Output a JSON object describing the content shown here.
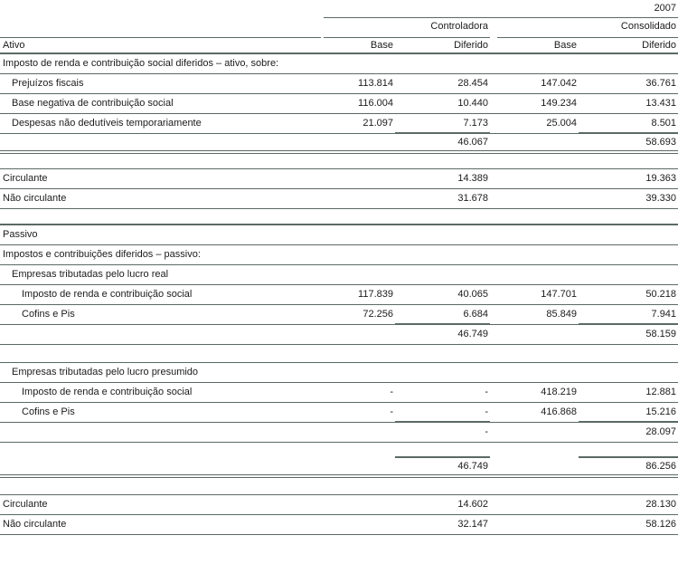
{
  "colors": {
    "rule": "#5b6a63",
    "text": "#1b1b1b",
    "background": "#ffffff"
  },
  "table": {
    "year": "2007",
    "groups": [
      {
        "label": "Controladora"
      },
      {
        "label": "Consolidado"
      }
    ],
    "col_headers": {
      "stub": "Ativo",
      "cols": [
        "Base",
        "Diferido",
        "Base",
        "Diferido"
      ]
    },
    "rows": [
      {
        "label": "Imposto de renda e contribuição social diferidos – ativo, sobre:",
        "indent": 0,
        "values": [
          "",
          "",
          "",
          ""
        ],
        "rule": "single"
      },
      {
        "label": "Prejuízos fiscais",
        "indent": 1,
        "values": [
          "113.814",
          "28.454",
          "147.042",
          "36.761"
        ],
        "rule": "single"
      },
      {
        "label": "Base negativa de contribuição social",
        "indent": 1,
        "values": [
          "116.004",
          "10.440",
          "149.234",
          "13.431"
        ],
        "rule": "single"
      },
      {
        "label": "Despesas não dedutíveis temporariamente",
        "indent": 1,
        "values": [
          "21.097",
          "7.173",
          "25.004",
          "8.501"
        ],
        "rule": "single",
        "pretotal": true
      },
      {
        "label": "",
        "indent": 0,
        "values": [
          "",
          "46.067",
          "",
          "58.693"
        ],
        "rule": "double"
      },
      {
        "spacer": true,
        "height": 17,
        "label": "",
        "values": [
          "",
          "",
          "",
          ""
        ],
        "rule": "single"
      },
      {
        "label": "Circulante",
        "indent": 0,
        "values": [
          "",
          "14.389",
          "",
          "19.363"
        ],
        "rule": "single"
      },
      {
        "label": "Não circulante",
        "indent": 0,
        "values": [
          "",
          "31.678",
          "",
          "39.330"
        ],
        "rule": "single"
      },
      {
        "spacer": true,
        "height": 18,
        "label": "",
        "values": [
          "",
          "",
          "",
          ""
        ],
        "rule": "thick"
      },
      {
        "label": "Passivo",
        "indent": 0,
        "values": [
          "",
          "",
          "",
          ""
        ],
        "rule": "single"
      },
      {
        "label": "Impostos e contribuições diferidos – passivo:",
        "indent": 0,
        "values": [
          "",
          "",
          "",
          ""
        ],
        "rule": "single"
      },
      {
        "label": "Empresas tributadas pelo lucro real",
        "indent": 1,
        "values": [
          "",
          "",
          "",
          ""
        ],
        "rule": "single"
      },
      {
        "label": "Imposto de renda e contribuição social",
        "indent": 2,
        "values": [
          "117.839",
          "40.065",
          "147.701",
          "50.218"
        ],
        "rule": "single"
      },
      {
        "label": "Cofins e Pis",
        "indent": 2,
        "values": [
          "72.256",
          "6.684",
          "85.849",
          "7.941"
        ],
        "rule": "single",
        "pretotal": true
      },
      {
        "label": "",
        "indent": 0,
        "values": [
          "",
          "46.749",
          "",
          "58.159"
        ],
        "rule": "single"
      },
      {
        "spacer": true,
        "height": 20,
        "label": "",
        "values": [
          "",
          "",
          "",
          ""
        ],
        "rule": "single"
      },
      {
        "label": "Empresas tributadas pelo lucro presumido",
        "indent": 1,
        "values": [
          "",
          "",
          "",
          ""
        ],
        "rule": "single"
      },
      {
        "label": "Imposto de renda e contribuição social",
        "indent": 2,
        "values": [
          "-",
          "-",
          "418.219",
          "12.881"
        ],
        "rule": "single"
      },
      {
        "label": "Cofins e Pis",
        "indent": 2,
        "values": [
          "-",
          "-",
          "416.868",
          "15.216"
        ],
        "rule": "single",
        "pretotal": true
      },
      {
        "label": "",
        "indent": 0,
        "values": [
          "",
          "-",
          "",
          "28.097"
        ],
        "rule": "single"
      },
      {
        "spacer": true,
        "height": 17,
        "label": "",
        "values": [
          "",
          "",
          "",
          ""
        ],
        "rule": "none",
        "pretotal": true
      },
      {
        "label": "",
        "indent": 0,
        "values": [
          "",
          "46.749",
          "",
          "86.256"
        ],
        "rule": "double"
      },
      {
        "spacer": true,
        "height": 19,
        "label": "",
        "values": [
          "",
          "",
          "",
          ""
        ],
        "rule": "single"
      },
      {
        "label": "Circulante",
        "indent": 0,
        "values": [
          "",
          "14.602",
          "",
          "28.130"
        ],
        "rule": "single"
      },
      {
        "label": "Não circulante",
        "indent": 0,
        "values": [
          "",
          "32.147",
          "",
          "58.126"
        ],
        "rule": "single"
      }
    ]
  }
}
